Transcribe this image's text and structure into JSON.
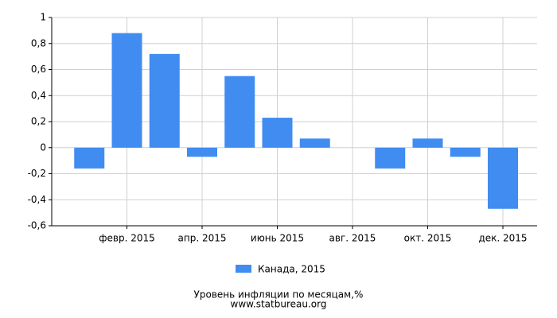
{
  "chart_data": {
    "type": "bar",
    "title": "Уровень инфляции по месяцам,%",
    "subtitle": "www.statbureau.org",
    "categories": [
      null,
      "февр. 2015",
      null,
      "апр. 2015",
      null,
      "июнь 2015",
      null,
      "авг. 2015",
      null,
      "окт. 2015",
      null,
      "дек. 2015"
    ],
    "series": [
      {
        "name": "Канада, 2015",
        "color": "#418cf0",
        "values": [
          -0.16,
          0.88,
          0.72,
          -0.07,
          0.55,
          0.23,
          0.07,
          0,
          -0.16,
          0.07,
          -0.07,
          -0.47
        ]
      }
    ],
    "ylim": [
      -0.6,
      1
    ],
    "yticks": [
      {
        "value": -0.6,
        "label": "-0,6"
      },
      {
        "value": -0.4,
        "label": "-0,4"
      },
      {
        "value": -0.2,
        "label": "-0,2"
      },
      0,
      {
        "value": 0.2,
        "label": "0,2"
      },
      {
        "value": 0.4,
        "label": "0,4"
      },
      {
        "value": 0.6,
        "label": "0,6"
      },
      {
        "value": 0.8,
        "label": "0,8"
      },
      1
    ],
    "grid": true
  }
}
